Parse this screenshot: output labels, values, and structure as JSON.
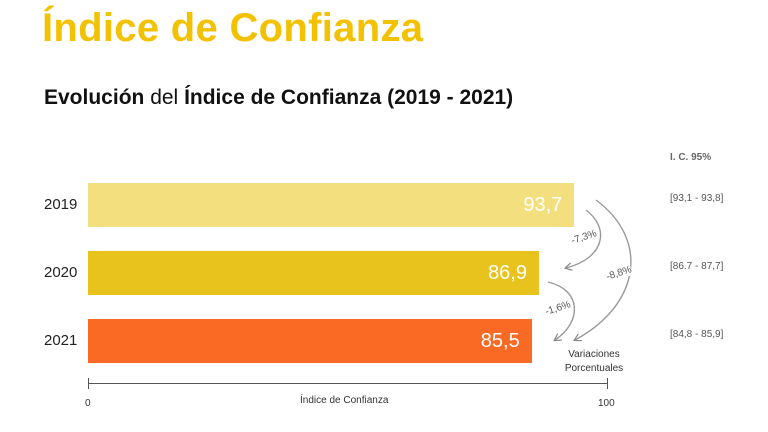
{
  "page": {
    "title": "Índice de Confianza",
    "subtitle": {
      "part1": "Evolución",
      "part2": " del ",
      "part3": "Índice de Confianza (2019 - 2021)"
    }
  },
  "chart_data": {
    "type": "bar",
    "orientation": "horizontal",
    "title": "Evolución del Índice de Confianza (2019 - 2021)",
    "xlabel": "Índice de Confianza",
    "xlim": [
      0,
      100
    ],
    "x_ticks": [
      "0",
      "100"
    ],
    "categories": [
      "2019",
      "2020",
      "2021"
    ],
    "values": [
      93.7,
      86.9,
      85.5
    ],
    "value_labels": [
      "93,7",
      "86,9",
      "85,5"
    ],
    "bar_colors": [
      "#f3df7e",
      "#e8c21d",
      "#fb6a25"
    ],
    "ci_header": "I. C. 95%",
    "ci": [
      "[93,1 - 93,8]",
      "[86.7 - 87,7]",
      "[84,8 - 85,9]"
    ],
    "variations": [
      {
        "from": "2019",
        "to": "2020",
        "label": "-7,3%"
      },
      {
        "from": "2020",
        "to": "2021",
        "label": "-1,6%"
      },
      {
        "from": "2019",
        "to": "2021",
        "label": "-8,8%"
      }
    ],
    "variations_caption": [
      "Variaciones",
      "Porcentuales"
    ]
  }
}
